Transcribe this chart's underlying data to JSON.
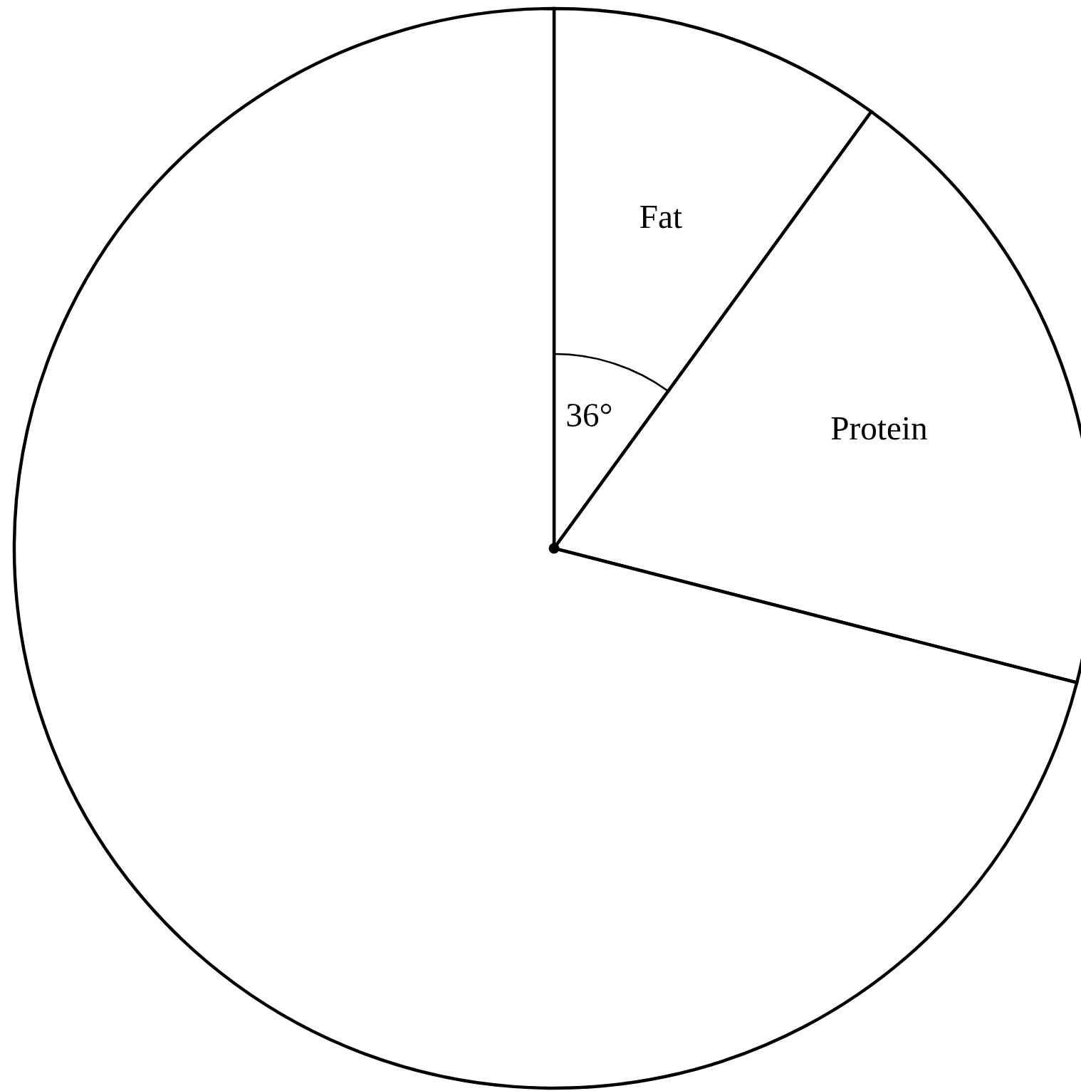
{
  "chart_data": {
    "type": "pie",
    "categories": [
      "Fat",
      "Protein",
      null
    ],
    "values": [
      10,
      19,
      71
    ],
    "colors": [
      "#ffffff",
      "#ffffff",
      "#ffffff"
    ],
    "annotations": [
      "36°"
    ]
  }
}
